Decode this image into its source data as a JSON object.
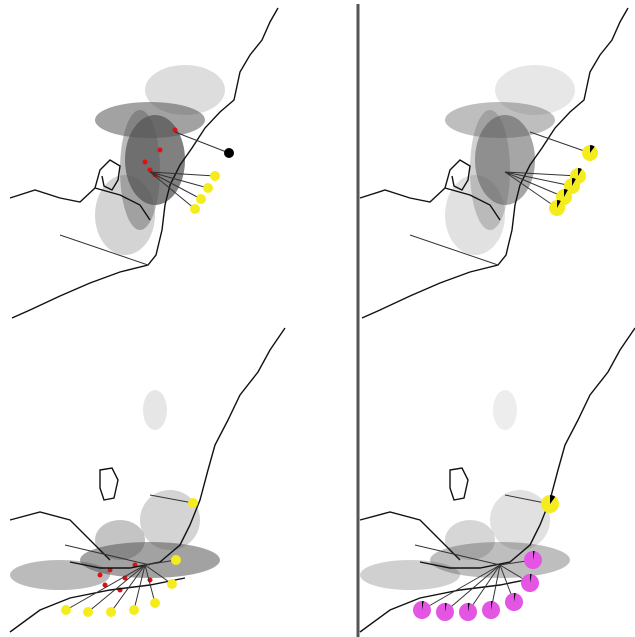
{
  "panels": [
    {
      "markers": [
        {
          "color": "#000000"
        },
        {
          "color": "#f5ec1e"
        },
        {
          "color": "#f5ec1e"
        },
        {
          "color": "#f5ec1e"
        },
        {
          "color": "#f5ec1e"
        }
      ]
    },
    {
      "markers": [
        {
          "color": "#f5ec1e",
          "black_share": 0.1
        },
        {
          "color": "#f5ec1e",
          "black_share": 0.08
        },
        {
          "color": "#f5ec1e",
          "black_share": 0.08
        },
        {
          "color": "#f5ec1e",
          "black_share": 0.08
        },
        {
          "color": "#f5ec1e",
          "black_share": 0.08
        }
      ]
    },
    {
      "markers": [
        {
          "color": "#f5ec1e"
        },
        {
          "color": "#f5ec1e"
        },
        {
          "color": "#f5ec1e"
        },
        {
          "color": "#f5ec1e"
        },
        {
          "color": "#f5ec1e"
        },
        {
          "color": "#f5ec1e"
        },
        {
          "color": "#f5ec1e"
        },
        {
          "color": "#f5ec1e"
        }
      ]
    },
    {
      "markers": [
        {
          "color": "#f5ec1e",
          "black_share": 0.1
        },
        {
          "color": "#e455e4",
          "black_share": 0.03
        },
        {
          "color": "#e455e4",
          "black_share": 0.03
        },
        {
          "color": "#e455e4",
          "black_share": 0.03
        },
        {
          "color": "#e455e4",
          "black_share": 0.03
        },
        {
          "color": "#e455e4",
          "black_share": 0.03
        },
        {
          "color": "#e455e4",
          "black_share": 0.03
        },
        {
          "color": "#e455e4",
          "black_share": 0.03
        }
      ]
    }
  ]
}
